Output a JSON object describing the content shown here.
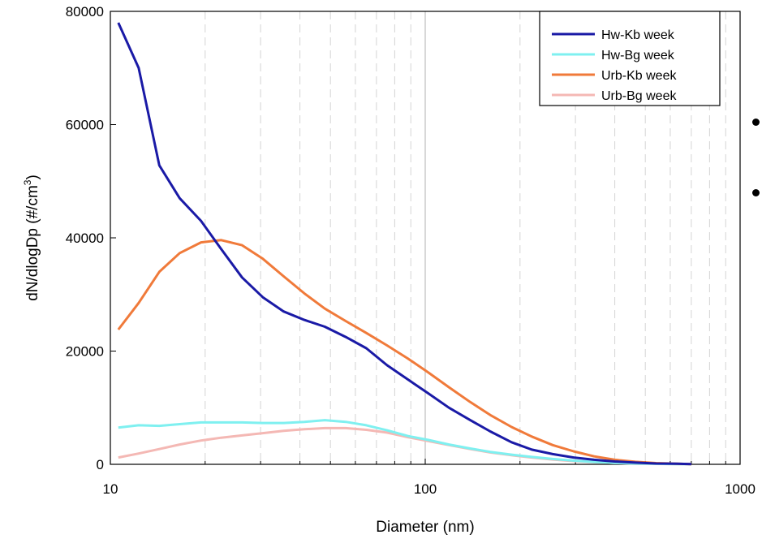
{
  "chart_data": {
    "type": "line",
    "xlabel": "Diameter (nm)",
    "ylabel_main": "dN/dlogDp (#/cm",
    "ylabel_sup": "3",
    "ylabel_end": ")",
    "xscale": "log",
    "xlim": [
      10,
      1000
    ],
    "ylim": [
      0,
      80000
    ],
    "x_ticks": [
      {
        "value": 10,
        "label": "10"
      },
      {
        "value": 100,
        "label": "100"
      },
      {
        "value": 1000,
        "label": "1000"
      }
    ],
    "y_ticks": [
      {
        "value": 0,
        "label": "0"
      },
      {
        "value": 20000,
        "label": "20000"
      },
      {
        "value": 40000,
        "label": "40000"
      },
      {
        "value": 60000,
        "label": "60000"
      },
      {
        "value": 80000,
        "label": "80000"
      }
    ],
    "grid": "vertical dashed minor lines at log decades, solid line at 100",
    "legend_position": "top-right",
    "series": [
      {
        "name": "Hw-Kb week",
        "color": "#1a1aa6",
        "points": [
          [
            10.6,
            78000
          ],
          [
            12.3,
            70000
          ],
          [
            14.3,
            52800
          ],
          [
            16.6,
            47000
          ],
          [
            19.4,
            43000
          ],
          [
            22.5,
            38000
          ],
          [
            26.2,
            33000
          ],
          [
            30.5,
            29500
          ],
          [
            35.5,
            27000
          ],
          [
            41.3,
            25500
          ],
          [
            48.0,
            24300
          ],
          [
            55.9,
            22500
          ],
          [
            65.0,
            20500
          ],
          [
            75.6,
            17500
          ],
          [
            88.0,
            15000
          ],
          [
            102.4,
            12500
          ],
          [
            119,
            10000
          ],
          [
            139,
            7800
          ],
          [
            161,
            5800
          ],
          [
            188,
            3900
          ],
          [
            218,
            2600
          ],
          [
            254,
            1800
          ],
          [
            296,
            1200
          ],
          [
            344,
            800
          ],
          [
            400,
            500
          ],
          [
            465,
            300
          ],
          [
            541,
            150
          ],
          [
            630,
            100
          ],
          [
            700,
            50
          ]
        ]
      },
      {
        "name": "Hw-Bg week",
        "color": "#7ff0f0",
        "points": [
          [
            10.6,
            6500
          ],
          [
            12.3,
            6900
          ],
          [
            14.3,
            6800
          ],
          [
            16.6,
            7100
          ],
          [
            19.4,
            7400
          ],
          [
            22.5,
            7400
          ],
          [
            26.2,
            7400
          ],
          [
            30.5,
            7300
          ],
          [
            35.5,
            7300
          ],
          [
            41.3,
            7500
          ],
          [
            48.0,
            7800
          ],
          [
            55.9,
            7500
          ],
          [
            65.0,
            6900
          ],
          [
            75.6,
            6000
          ],
          [
            88.0,
            5000
          ],
          [
            102.4,
            4300
          ],
          [
            119,
            3500
          ],
          [
            139,
            2800
          ],
          [
            161,
            2200
          ],
          [
            188,
            1700
          ],
          [
            218,
            1300
          ],
          [
            254,
            950
          ],
          [
            296,
            650
          ],
          [
            344,
            420
          ],
          [
            400,
            260
          ],
          [
            465,
            150
          ],
          [
            541,
            90
          ],
          [
            630,
            50
          ],
          [
            700,
            30
          ]
        ]
      },
      {
        "name": "Urb-Kb week",
        "color": "#f07a3a",
        "points": [
          [
            10.6,
            23800
          ],
          [
            12.3,
            28500
          ],
          [
            14.3,
            34000
          ],
          [
            16.6,
            37300
          ],
          [
            19.4,
            39200
          ],
          [
            22.5,
            39600
          ],
          [
            26.2,
            38700
          ],
          [
            30.5,
            36300
          ],
          [
            35.5,
            33200
          ],
          [
            41.3,
            30200
          ],
          [
            48.0,
            27500
          ],
          [
            55.9,
            25300
          ],
          [
            65.0,
            23200
          ],
          [
            75.6,
            21000
          ],
          [
            88.0,
            18700
          ],
          [
            102.4,
            16200
          ],
          [
            119,
            13600
          ],
          [
            139,
            11000
          ],
          [
            161,
            8700
          ],
          [
            188,
            6600
          ],
          [
            218,
            4900
          ],
          [
            254,
            3400
          ],
          [
            296,
            2300
          ],
          [
            344,
            1400
          ],
          [
            400,
            800
          ],
          [
            465,
            450
          ],
          [
            541,
            220
          ],
          [
            630,
            100
          ],
          [
            700,
            50
          ]
        ]
      },
      {
        "name": "Urb-Bg week",
        "color": "#f4b8b4",
        "points": [
          [
            10.6,
            1200
          ],
          [
            12.3,
            1900
          ],
          [
            14.3,
            2700
          ],
          [
            16.6,
            3500
          ],
          [
            19.4,
            4200
          ],
          [
            22.5,
            4700
          ],
          [
            26.2,
            5100
          ],
          [
            30.5,
            5500
          ],
          [
            35.5,
            5900
          ],
          [
            41.3,
            6200
          ],
          [
            48.0,
            6400
          ],
          [
            55.9,
            6400
          ],
          [
            65.0,
            6100
          ],
          [
            75.6,
            5600
          ],
          [
            88.0,
            4800
          ],
          [
            102.4,
            4100
          ],
          [
            119,
            3400
          ],
          [
            139,
            2700
          ],
          [
            161,
            2100
          ],
          [
            188,
            1600
          ],
          [
            218,
            1200
          ],
          [
            254,
            850
          ],
          [
            296,
            580
          ],
          [
            344,
            380
          ],
          [
            400,
            230
          ],
          [
            465,
            130
          ],
          [
            541,
            70
          ],
          [
            630,
            40
          ],
          [
            700,
            20
          ]
        ]
      }
    ]
  }
}
